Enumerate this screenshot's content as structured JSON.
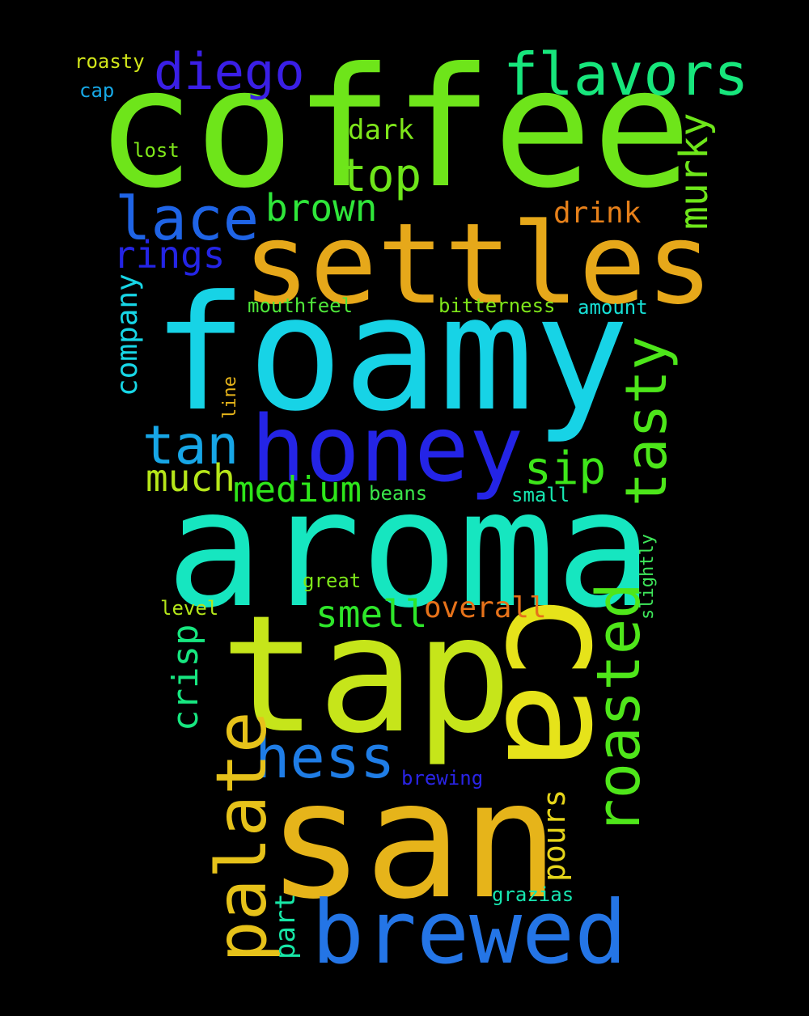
{
  "words": {
    "coffee": {
      "text": "coffee",
      "color": "#6ee51a"
    },
    "foamy": {
      "text": "foamy",
      "color": "#17d3e6"
    },
    "aroma": {
      "text": "aroma",
      "color": "#16e6c0"
    },
    "tap": {
      "text": "tap",
      "color": "#c6e51a"
    },
    "san": {
      "text": "san",
      "color": "#e6b41a"
    },
    "ca": {
      "text": "ca",
      "color": "#e6e31a"
    },
    "settles": {
      "text": "settles",
      "color": "#e6a81a"
    },
    "honey": {
      "text": "honey",
      "color": "#2424e6"
    },
    "brewed": {
      "text": "brewed",
      "color": "#2475e6"
    },
    "palate": {
      "text": "palate",
      "color": "#e6c21a"
    },
    "roasted": {
      "text": "roasted",
      "color": "#4fe61a"
    },
    "hess": {
      "text": "hess",
      "color": "#1f7de6"
    },
    "tasty": {
      "text": "tasty",
      "color": "#4de61a"
    },
    "lace": {
      "text": "lace",
      "color": "#1f64e6"
    },
    "tan": {
      "text": "tan",
      "color": "#17a6e6"
    },
    "flavors": {
      "text": "flavors",
      "color": "#17e67c"
    },
    "diego": {
      "text": "diego",
      "color": "#3a1fe6"
    },
    "top": {
      "text": "top",
      "color": "#6ee61a"
    },
    "murky": {
      "text": "murky",
      "color": "#6ee61a"
    },
    "sip": {
      "text": "sip",
      "color": "#3ee61a"
    },
    "brown": {
      "text": "brown",
      "color": "#2fe63a"
    },
    "medium": {
      "text": "medium",
      "color": "#2ee61a"
    },
    "much": {
      "text": "much",
      "color": "#b6e61a"
    },
    "smell": {
      "text": "smell",
      "color": "#2ee62a"
    },
    "overall": {
      "text": "overall",
      "color": "#e6721a"
    },
    "rings": {
      "text": "rings",
      "color": "#2424e6"
    },
    "crisp": {
      "text": "crisp",
      "color": "#17e680"
    },
    "company": {
      "text": "company",
      "color": "#17d6e6"
    },
    "drink": {
      "text": "drink",
      "color": "#e6801a"
    },
    "pours": {
      "text": "pours",
      "color": "#e6d51a"
    },
    "part": {
      "text": "part",
      "color": "#17e6a6"
    },
    "dark": {
      "text": "dark",
      "color": "#7ee61a"
    },
    "roasty": {
      "text": "roasty",
      "color": "#d2e61a"
    },
    "cap": {
      "text": "cap",
      "color": "#17a8e6"
    },
    "lost": {
      "text": "lost",
      "color": "#7fe61a"
    },
    "mouthfeel": {
      "text": "mouthfeel",
      "color": "#4ee63a"
    },
    "bitterness": {
      "text": "bitterness",
      "color": "#7ee61a"
    },
    "amount": {
      "text": "amount",
      "color": "#17e0d6"
    },
    "line": {
      "text": "line",
      "color": "#e6b41a"
    },
    "beans": {
      "text": "beans",
      "color": "#3ae64a"
    },
    "small": {
      "text": "small",
      "color": "#17e6b0"
    },
    "slightly": {
      "text": "slightly",
      "color": "#3ee65a"
    },
    "great": {
      "text": "great",
      "color": "#7ee61a"
    },
    "level": {
      "text": "level",
      "color": "#b4e61a"
    },
    "brewing": {
      "text": "brewing",
      "color": "#2a24e6"
    },
    "grazias": {
      "text": "grazias",
      "color": "#17e6b0"
    }
  }
}
